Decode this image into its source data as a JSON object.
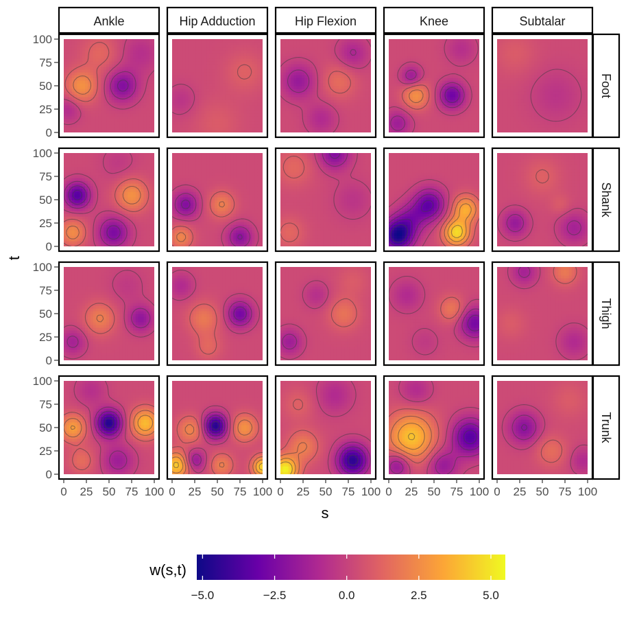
{
  "chart_data": {
    "type": "heatmap",
    "layout": "faceted grid of filled contour heatmaps",
    "x_label": "s",
    "y_label": "t",
    "x_ticks": [
      "0",
      "25",
      "50",
      "75",
      "100"
    ],
    "y_ticks": [
      "0",
      "25",
      "50",
      "75",
      "100"
    ],
    "xlim": [
      0,
      100
    ],
    "ylim": [
      0,
      100
    ],
    "col_facets": [
      "Ankle",
      "Hip Adduction",
      "Hip Flexion",
      "Knee",
      "Subtalar"
    ],
    "row_facets": [
      "Foot",
      "Shank",
      "Thigh",
      "Trunk"
    ],
    "legend": {
      "title": "w(s,t)",
      "position": "bottom",
      "range": [
        -5.2,
        5.5
      ],
      "ticks": [
        "-5.0",
        "-2.5",
        "0.0",
        "2.5",
        "5.0"
      ],
      "tick_values": [
        -5.0,
        -2.5,
        0.0,
        2.5,
        5.0
      ],
      "palette": [
        "#0d0887",
        "#6a00a8",
        "#b12a90",
        "#e16462",
        "#fca636",
        "#f0f921"
      ]
    },
    "panels": [
      {
        "row": "Foot",
        "col": "Ankle",
        "blobs": [
          [
            20,
            50,
            12,
            2.4
          ],
          [
            65,
            50,
            12,
            -2.6
          ],
          [
            5,
            25,
            10,
            -1.2
          ],
          [
            85,
            85,
            15,
            -1.0
          ],
          [
            40,
            85,
            14,
            1.0
          ]
        ]
      },
      {
        "row": "Foot",
        "col": "Hip Adduction",
        "blobs": [
          [
            10,
            35,
            12,
            -0.8
          ],
          [
            80,
            65,
            15,
            0.8
          ],
          [
            50,
            10,
            18,
            0.6
          ]
        ]
      },
      {
        "row": "Foot",
        "col": "Hip Flexion",
        "blobs": [
          [
            20,
            55,
            13,
            -2.0
          ],
          [
            65,
            55,
            13,
            1.2
          ],
          [
            45,
            15,
            12,
            -1.2
          ],
          [
            80,
            85,
            12,
            -1.4
          ]
        ]
      },
      {
        "row": "Foot",
        "col": "Knee",
        "blobs": [
          [
            70,
            40,
            10,
            -3.2
          ],
          [
            30,
            40,
            10,
            2.4
          ],
          [
            25,
            60,
            8,
            -2.0
          ],
          [
            80,
            90,
            12,
            -1.0
          ],
          [
            10,
            10,
            10,
            -1.8
          ]
        ]
      },
      {
        "row": "Foot",
        "col": "Subtalar",
        "blobs": [
          [
            65,
            40,
            20,
            -0.8
          ],
          [
            20,
            85,
            16,
            0.6
          ]
        ]
      },
      {
        "row": "Shank",
        "col": "Ankle",
        "blobs": [
          [
            15,
            55,
            10,
            -3.8
          ],
          [
            75,
            55,
            12,
            2.4
          ],
          [
            55,
            15,
            12,
            -2.8
          ],
          [
            10,
            15,
            10,
            2.2
          ],
          [
            60,
            90,
            14,
            -0.6
          ]
        ]
      },
      {
        "row": "Shank",
        "col": "Hip Adduction",
        "blobs": [
          [
            15,
            45,
            10,
            -2.6
          ],
          [
            55,
            45,
            10,
            1.8
          ],
          [
            75,
            10,
            10,
            -2.4
          ],
          [
            10,
            10,
            9,
            2.0
          ]
        ]
      },
      {
        "row": "Shank",
        "col": "Hip Flexion",
        "blobs": [
          [
            60,
            100,
            12,
            -2.6
          ],
          [
            15,
            85,
            14,
            1.0
          ],
          [
            80,
            50,
            15,
            -0.8
          ],
          [
            10,
            15,
            12,
            1.0
          ]
        ]
      },
      {
        "row": "Shank",
        "col": "Knee",
        "blobs": [
          [
            10,
            12,
            12,
            -5.2
          ],
          [
            45,
            45,
            12,
            -3.4
          ],
          [
            75,
            15,
            10,
            4.4
          ],
          [
            85,
            40,
            10,
            3.2
          ],
          [
            25,
            30,
            12,
            -2.0
          ]
        ]
      },
      {
        "row": "Shank",
        "col": "Subtalar",
        "blobs": [
          [
            20,
            25,
            10,
            -2.0
          ],
          [
            85,
            20,
            12,
            -1.6
          ],
          [
            50,
            75,
            14,
            0.8
          ],
          [
            70,
            45,
            8,
            0.6
          ]
        ]
      },
      {
        "row": "Thigh",
        "col": "Ankle",
        "blobs": [
          [
            40,
            45,
            12,
            1.8
          ],
          [
            85,
            45,
            10,
            -2.2
          ],
          [
            10,
            20,
            10,
            -1.6
          ],
          [
            70,
            80,
            14,
            -0.6
          ]
        ]
      },
      {
        "row": "Thigh",
        "col": "Hip Adduction",
        "blobs": [
          [
            75,
            50,
            10,
            -3.0
          ],
          [
            35,
            45,
            12,
            1.6
          ],
          [
            10,
            80,
            10,
            -1.2
          ],
          [
            40,
            15,
            10,
            1.0
          ]
        ]
      },
      {
        "row": "Thigh",
        "col": "Hip Flexion",
        "blobs": [
          [
            10,
            20,
            10,
            -1.8
          ],
          [
            70,
            50,
            12,
            1.4
          ],
          [
            40,
            70,
            10,
            -1.0
          ],
          [
            80,
            85,
            12,
            0.6
          ]
        ]
      },
      {
        "row": "Thigh",
        "col": "Knee",
        "blobs": [
          [
            95,
            40,
            12,
            -3.0
          ],
          [
            70,
            55,
            10,
            1.6
          ],
          [
            20,
            70,
            12,
            -1.2
          ],
          [
            40,
            20,
            12,
            -0.6
          ]
        ]
      },
      {
        "row": "Thigh",
        "col": "Subtalar",
        "blobs": [
          [
            30,
            95,
            10,
            -1.6
          ],
          [
            75,
            95,
            10,
            1.6
          ],
          [
            85,
            20,
            12,
            -1.2
          ],
          [
            15,
            40,
            12,
            0.6
          ]
        ]
      },
      {
        "row": "Trunk",
        "col": "Ankle",
        "blobs": [
          [
            50,
            55,
            10,
            -5.0
          ],
          [
            10,
            50,
            10,
            2.8
          ],
          [
            90,
            55,
            11,
            3.6
          ],
          [
            60,
            15,
            12,
            -1.8
          ],
          [
            20,
            15,
            10,
            1.2
          ],
          [
            30,
            90,
            12,
            -1.0
          ]
        ]
      },
      {
        "row": "Trunk",
        "col": "Hip Adduction",
        "blobs": [
          [
            48,
            52,
            9,
            -5.0
          ],
          [
            80,
            50,
            10,
            2.4
          ],
          [
            20,
            48,
            10,
            2.0
          ],
          [
            5,
            10,
            10,
            4.0
          ],
          [
            100,
            8,
            8,
            4.2
          ],
          [
            25,
            15,
            8,
            -2.2
          ],
          [
            55,
            10,
            9,
            1.8
          ]
        ]
      },
      {
        "row": "Trunk",
        "col": "Hip Flexion",
        "blobs": [
          [
            80,
            15,
            12,
            -4.8
          ],
          [
            5,
            5,
            10,
            5.0
          ],
          [
            25,
            30,
            12,
            1.8
          ],
          [
            60,
            85,
            14,
            -1.2
          ],
          [
            20,
            75,
            12,
            0.8
          ]
        ]
      },
      {
        "row": "Trunk",
        "col": "Knee",
        "blobs": [
          [
            25,
            40,
            18,
            3.8
          ],
          [
            90,
            40,
            14,
            -3.8
          ],
          [
            60,
            10,
            12,
            -2.0
          ],
          [
            30,
            90,
            12,
            -1.2
          ],
          [
            10,
            10,
            10,
            -2.4
          ]
        ]
      },
      {
        "row": "Trunk",
        "col": "Subtalar",
        "blobs": [
          [
            30,
            50,
            12,
            -2.4
          ],
          [
            80,
            80,
            14,
            0.6
          ],
          [
            60,
            25,
            12,
            1.2
          ],
          [
            95,
            15,
            10,
            -1.2
          ]
        ]
      }
    ]
  }
}
